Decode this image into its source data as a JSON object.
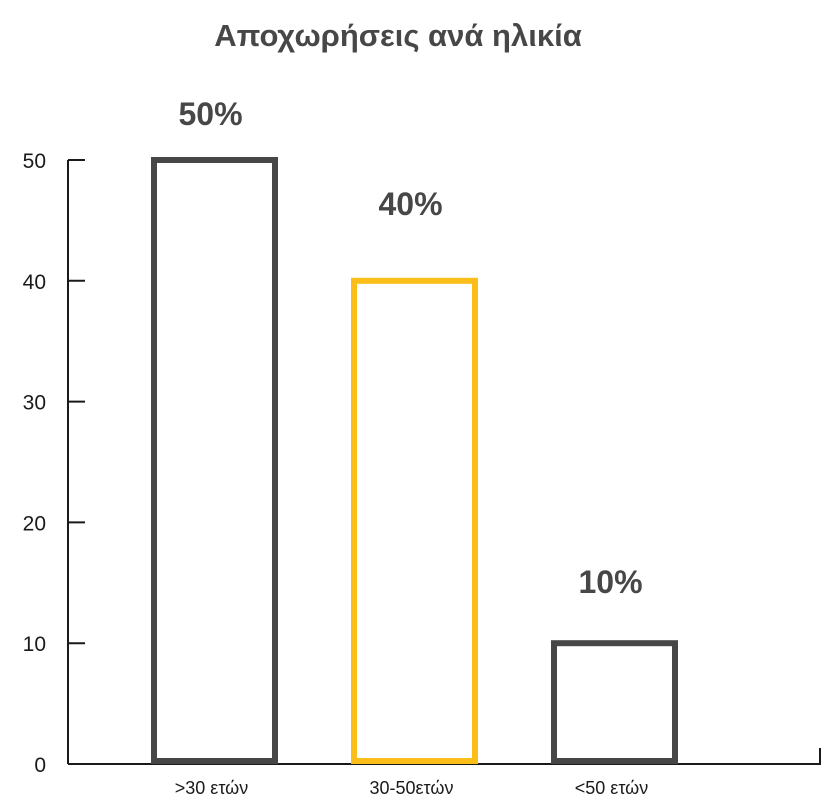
{
  "chart_data": {
    "type": "bar",
    "title": "Αποχωρήσεις ανά ηλικία",
    "xlabel": "",
    "ylabel": "",
    "categories": [
      ">30 ετών",
      "30-50ετών",
      "<50 ετών"
    ],
    "values": [
      50,
      40,
      10
    ],
    "data_labels": [
      "50%",
      "40%",
      "10%"
    ],
    "bar_colors": [
      "#474747",
      "#FBBD17",
      "#474747"
    ],
    "bar_fill": "#ffffff",
    "ylim": [
      0,
      50
    ],
    "yticks": [
      0,
      10,
      20,
      30,
      40,
      50
    ],
    "grid": false,
    "legend": "none"
  }
}
